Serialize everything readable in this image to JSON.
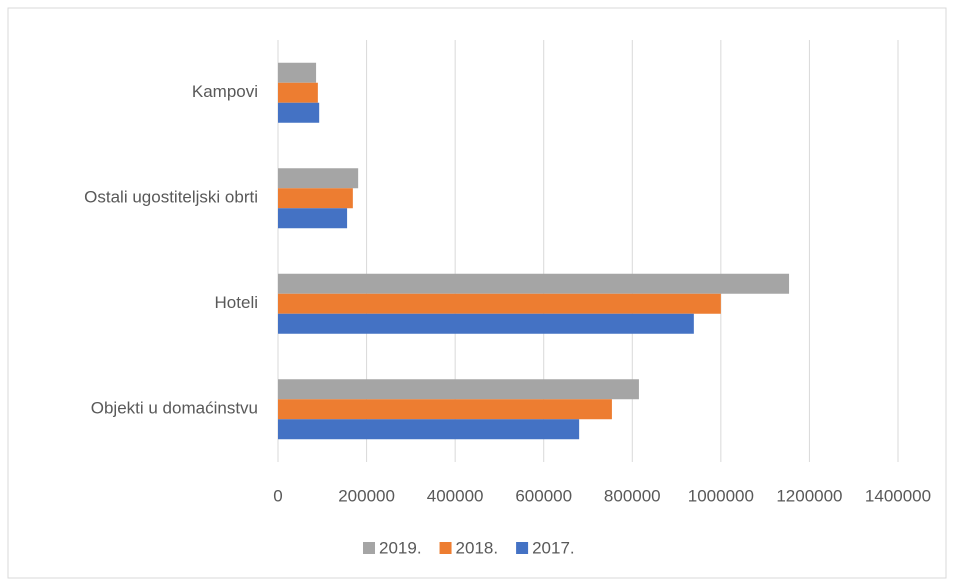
{
  "chart_data": {
    "type": "hbar",
    "categories": [
      "Kampovi",
      "Ostali ugostiteljski obrti",
      "Hoteli",
      "Objekti u domaćinstvu"
    ],
    "series": [
      {
        "name": "2019.",
        "color": "#a5a5a5",
        "values": [
          86000,
          181000,
          1154000,
          815000
        ]
      },
      {
        "name": "2018.",
        "color": "#ed7d31",
        "values": [
          90000,
          169000,
          1000000,
          754000
        ]
      },
      {
        "name": "2017.",
        "color": "#4472c4",
        "values": [
          93000,
          156000,
          939000,
          680000
        ]
      }
    ],
    "xlim": [
      0,
      1400000
    ],
    "xticks": [
      0,
      200000,
      400000,
      600000,
      800000,
      1000000,
      1200000,
      1400000
    ],
    "grid": true,
    "legend": "bottom"
  }
}
